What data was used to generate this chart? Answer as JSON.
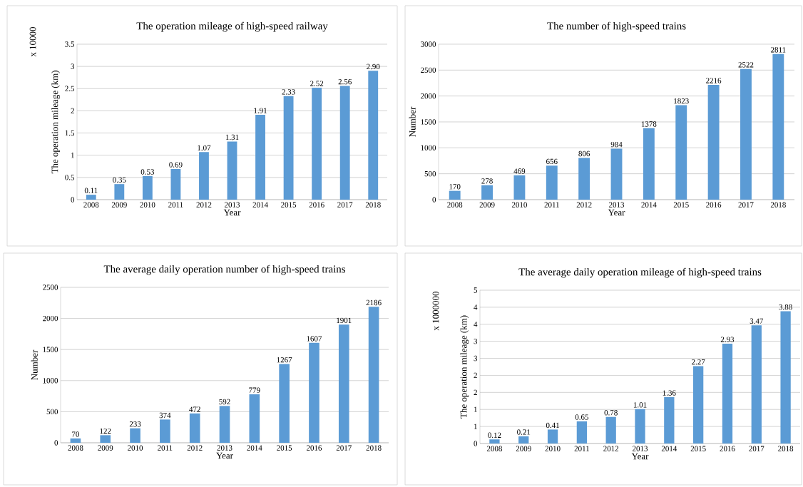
{
  "chart_data": [
    {
      "type": "bar",
      "title": "The operation mileage of high-speed railway",
      "xlabel": "Year",
      "ylabel": "The operation mileage (km)",
      "annotations": [
        "x 10000"
      ],
      "categories": [
        "2008",
        "2009",
        "2010",
        "2011",
        "2012",
        "2013",
        "2014",
        "2015",
        "2016",
        "2017",
        "2018"
      ],
      "values": [
        0.11,
        0.35,
        0.53,
        0.69,
        1.07,
        1.31,
        1.91,
        2.33,
        2.52,
        2.56,
        2.9
      ],
      "value_labels": [
        "0.11",
        "0.35",
        "0.53",
        "0.69",
        "1.07",
        "1.31",
        "1.91",
        "2.33",
        "2.52",
        "2.56",
        "2.90"
      ],
      "color": "#5b9bd5",
      "ylim": [
        0,
        3.5
      ],
      "yticks": [
        0,
        0.5,
        1,
        1.5,
        2,
        2.5,
        3,
        3.5
      ],
      "grid": "y"
    },
    {
      "type": "bar",
      "title": "The number of high-speed trains",
      "xlabel": "Year",
      "ylabel": "Number",
      "categories": [
        "2008",
        "2009",
        "2010",
        "2011",
        "2012",
        "2013",
        "2014",
        "2015",
        "2016",
        "2017",
        "2018"
      ],
      "values": [
        170,
        278,
        469,
        656,
        806,
        984,
        1378,
        1823,
        2216,
        2522,
        2811
      ],
      "data_labels": true,
      "color": "#5b9bd5",
      "ylim": [
        0,
        3000
      ],
      "yticks": [
        0,
        500,
        1000,
        1500,
        2000,
        2500,
        3000
      ],
      "grid": "y"
    },
    {
      "type": "bar",
      "title": "The average daily operation number of high-speed trains",
      "xlabel": "Year",
      "ylabel": "Number",
      "categories": [
        "2008",
        "2009",
        "2010",
        "2011",
        "2012",
        "2013",
        "2014",
        "2015",
        "2016",
        "2017",
        "2018"
      ],
      "values": [
        70,
        122,
        233,
        374,
        472,
        592,
        779,
        1267,
        1607,
        1901,
        2186
      ],
      "data_labels": true,
      "color": "#5b9bd5",
      "ylim": [
        0,
        2500
      ],
      "yticks": [
        0,
        500,
        1000,
        1500,
        2000,
        2500
      ],
      "grid": "y"
    },
    {
      "type": "bar",
      "title": "The average daily operation mileage of high-speed trains",
      "xlabel": "Year",
      "ylabel": "The operation mileage (km)",
      "annotations": [
        "x 1000000"
      ],
      "categories": [
        "2008",
        "2009",
        "2010",
        "2011",
        "2012",
        "2013",
        "2014",
        "2015",
        "2016",
        "2017",
        "2018"
      ],
      "values": [
        0.12,
        0.21,
        0.41,
        0.65,
        0.78,
        1.01,
        1.36,
        2.27,
        2.93,
        3.47,
        3.88
      ],
      "value_labels": [
        "0.12",
        "0.21",
        "0.41",
        "0.65",
        "0.78",
        "1.01",
        "1.36",
        "2.27",
        "2.93",
        "3.47",
        "3.88"
      ],
      "color": "#5b9bd5",
      "ylim": [
        0,
        4.5
      ],
      "yticks": [
        0,
        {
          "value": 0.5,
          "label": "1"
        },
        1,
        {
          "value": 1.5,
          "label": "2"
        },
        2,
        {
          "value": 2.5,
          "label": "3"
        },
        3,
        {
          "value": 3.5,
          "label": "4"
        },
        4,
        {
          "value": 4.5,
          "label": "5"
        }
      ],
      "grid": "y"
    }
  ]
}
